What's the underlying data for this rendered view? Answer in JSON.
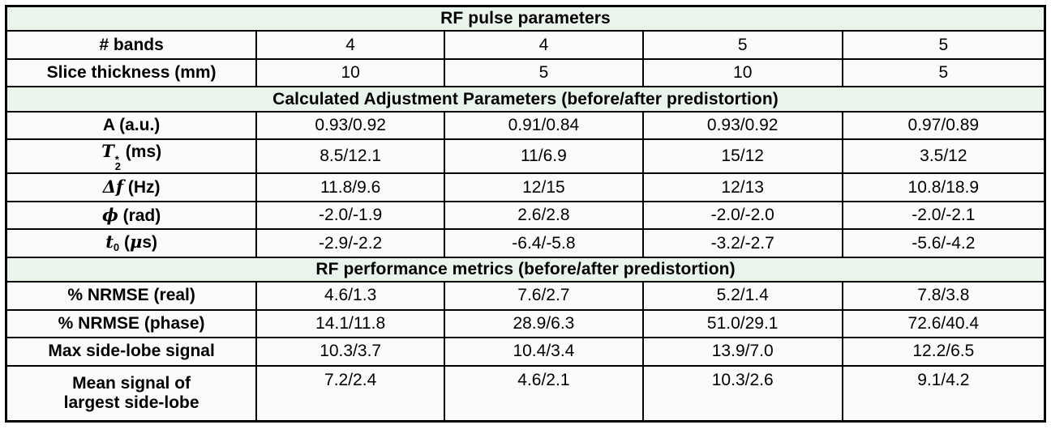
{
  "title": "RF pulse parameters",
  "colors": {
    "section_bg": "#e9f5ea",
    "cell_bg": "#fbfbfb",
    "border": "#000000",
    "text": "#000000"
  },
  "table": {
    "col_widths_pct": [
      24.1,
      18.1,
      19.1,
      19.2,
      19.5
    ],
    "rows": [
      {
        "type": "section",
        "label": "RF pulse parameters"
      },
      {
        "type": "data",
        "label": [
          {
            "text": "# bands"
          }
        ],
        "values": [
          "4",
          "4",
          "5",
          "5"
        ]
      },
      {
        "type": "data",
        "label": [
          {
            "text": "Slice thickness (mm)"
          }
        ],
        "values": [
          "10",
          "5",
          "10",
          "5"
        ]
      },
      {
        "type": "section",
        "label": "Calculated Adjustment Parameters (before/after predistortion)"
      },
      {
        "type": "data",
        "label": [
          {
            "text": "A (a.u.)"
          }
        ],
        "values": [
          "0.93/0.92",
          "0.91/0.84",
          "0.93/0.92",
          "0.97/0.89"
        ]
      },
      {
        "type": "data",
        "label": [
          {
            "text": "T",
            "style": "math"
          },
          {
            "style": "stack",
            "sup": "*",
            "sub": "2"
          },
          {
            "text": " (ms)"
          }
        ],
        "values": [
          "8.5/12.1",
          "11/6.9",
          "15/12",
          "3.5/12"
        ]
      },
      {
        "type": "data",
        "label": [
          {
            "text": "Δf",
            "style": "math"
          },
          {
            "text": " (Hz)"
          }
        ],
        "values": [
          "11.8/9.6",
          "12/15",
          "12/13",
          "10.8/18.9"
        ]
      },
      {
        "type": "data",
        "label": [
          {
            "text": "ϕ",
            "style": "math"
          },
          {
            "text": " (rad)"
          }
        ],
        "values": [
          "-2.0/-1.9",
          "2.6/2.8",
          "-2.0/-2.0",
          "-2.0/-2.1"
        ]
      },
      {
        "type": "data",
        "label": [
          {
            "text": "t",
            "style": "math"
          },
          {
            "text": "0",
            "style": "sub"
          },
          {
            "text": " ("
          },
          {
            "text": "μ",
            "style": "math"
          },
          {
            "text": "s)"
          }
        ],
        "values": [
          "-2.9/-2.2",
          "-6.4/-5.8",
          "-3.2/-2.7",
          "-5.6/-4.2"
        ]
      },
      {
        "type": "section",
        "label": "RF performance metrics (before/after predistortion)"
      },
      {
        "type": "data",
        "label": [
          {
            "text": "% NRMSE (real)"
          }
        ],
        "values": [
          "4.6/1.3",
          "7.6/2.7",
          "5.2/1.4",
          "7.8/3.8"
        ]
      },
      {
        "type": "data",
        "label": [
          {
            "text": "% NRMSE (phase)"
          }
        ],
        "values": [
          "14.1/11.8",
          "28.9/6.3",
          "51.0/29.1",
          "72.6/40.4"
        ]
      },
      {
        "type": "data",
        "label": [
          {
            "text": "Max side-lobe signal"
          }
        ],
        "values": [
          "10.3/3.7",
          "10.4/3.4",
          "13.9/7.0",
          "12.2/6.5"
        ]
      },
      {
        "type": "data",
        "tall": true,
        "label": [
          {
            "text": "Mean signal of"
          },
          {
            "style": "break"
          },
          {
            "text": "largest side-lobe"
          }
        ],
        "values": [
          "7.2/2.4",
          "4.6/2.1",
          "10.3/2.6",
          "9.1/4.2"
        ]
      }
    ]
  }
}
